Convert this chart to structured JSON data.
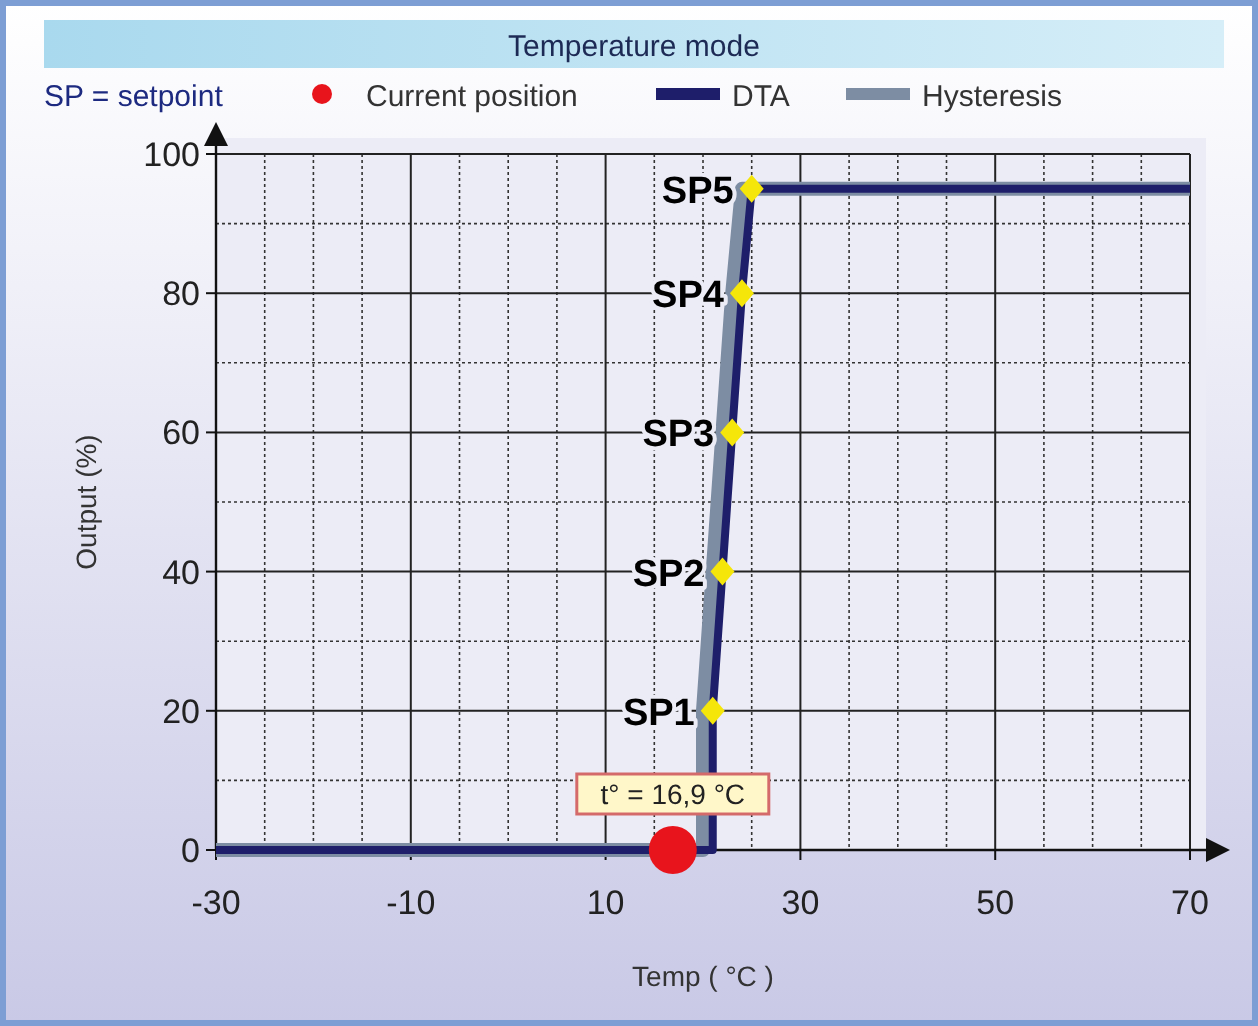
{
  "chart_data": {
    "type": "line",
    "title": "Temperature mode",
    "xlabel": "Temp ( °C )",
    "ylabel": "Output (%)",
    "xlim": [
      -30,
      70
    ],
    "xticks": [
      -30,
      -10,
      10,
      30,
      50,
      70
    ],
    "ylim": [
      0,
      100
    ],
    "yticks": [
      0,
      20,
      40,
      60,
      80,
      100
    ],
    "grid": true,
    "legend": "top",
    "series": [
      {
        "name": "Hysteresis",
        "type": "line",
        "color": "#7d8da3",
        "x": [
          -30,
          20,
          20,
          21,
          22,
          23,
          24,
          70
        ],
        "values": [
          0,
          0,
          20,
          40,
          60,
          80,
          95,
          95
        ]
      },
      {
        "name": "DTA",
        "type": "line",
        "color": "#1e1e6a",
        "x": [
          -30,
          21,
          21,
          22,
          23,
          24,
          25,
          70
        ],
        "values": [
          0,
          0,
          20,
          40,
          60,
          80,
          95,
          95
        ]
      },
      {
        "type": "scatter",
        "marker": "diamond",
        "color": "#f5e60a",
        "x": [
          21,
          22,
          23,
          24,
          25
        ],
        "values": [
          20,
          40,
          60,
          80,
          95
        ]
      },
      {
        "name": "Current position",
        "type": "scatter",
        "marker": "circle",
        "color": "#e8141c",
        "x": [
          16.9
        ],
        "values": [
          0
        ]
      }
    ],
    "annotations": [
      "SP = setpoint",
      {
        "text": "SP1",
        "x": 21,
        "y": 20
      },
      {
        "text": "SP2",
        "x": 22,
        "y": 40
      },
      {
        "text": "SP3",
        "x": 23,
        "y": 60
      },
      {
        "text": "SP4",
        "x": 24,
        "y": 80
      },
      {
        "text": "SP5",
        "x": 25,
        "y": 95
      },
      {
        "text": "t° = 16,9 °C",
        "x": 16.9,
        "y": 0
      }
    ]
  }
}
